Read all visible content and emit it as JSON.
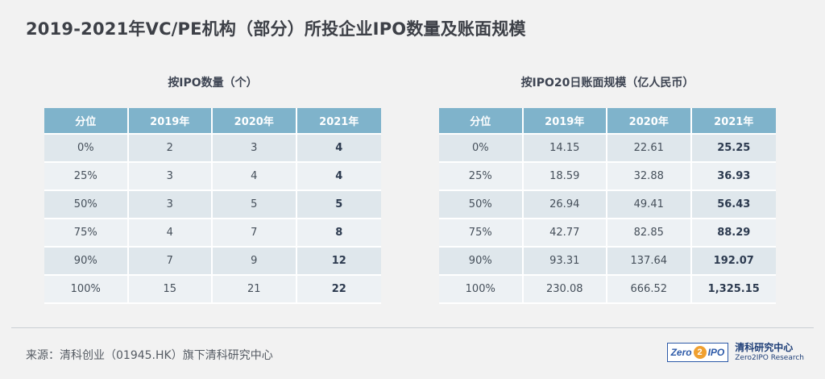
{
  "title": "2019-2021年VC/PE机构（部分）所投企业IPO数量及账面规模",
  "tables": [
    {
      "caption": "按IPO数量（个）",
      "headers": [
        "分位",
        "2019年",
        "2020年",
        "2021年"
      ],
      "rows": [
        [
          "0%",
          "2",
          "3",
          "4"
        ],
        [
          "25%",
          "3",
          "4",
          "4"
        ],
        [
          "50%",
          "3",
          "5",
          "5"
        ],
        [
          "75%",
          "4",
          "7",
          "8"
        ],
        [
          "90%",
          "7",
          "9",
          "12"
        ],
        [
          "100%",
          "15",
          "21",
          "22"
        ]
      ]
    },
    {
      "caption": "按IPO20日账面规模（亿人民币）",
      "headers": [
        "分位",
        "2019年",
        "2020年",
        "2021年"
      ],
      "rows": [
        [
          "0%",
          "14.15",
          "22.61",
          "25.25"
        ],
        [
          "25%",
          "18.59",
          "32.88",
          "36.93"
        ],
        [
          "50%",
          "26.94",
          "49.41",
          "56.43"
        ],
        [
          "75%",
          "42.77",
          "82.85",
          "88.29"
        ],
        [
          "90%",
          "93.31",
          "137.64",
          "192.07"
        ],
        [
          "100%",
          "230.08",
          "666.52",
          "1,325.15"
        ]
      ]
    }
  ],
  "footer": {
    "source": "来源：清科创业（01945.HK）旗下清科研究中心",
    "logo": {
      "part1": "Zero",
      "part2": "2",
      "part3": "IPO"
    },
    "brand_cn": "清科研究中心",
    "brand_en": "Zero2IPO Research"
  }
}
